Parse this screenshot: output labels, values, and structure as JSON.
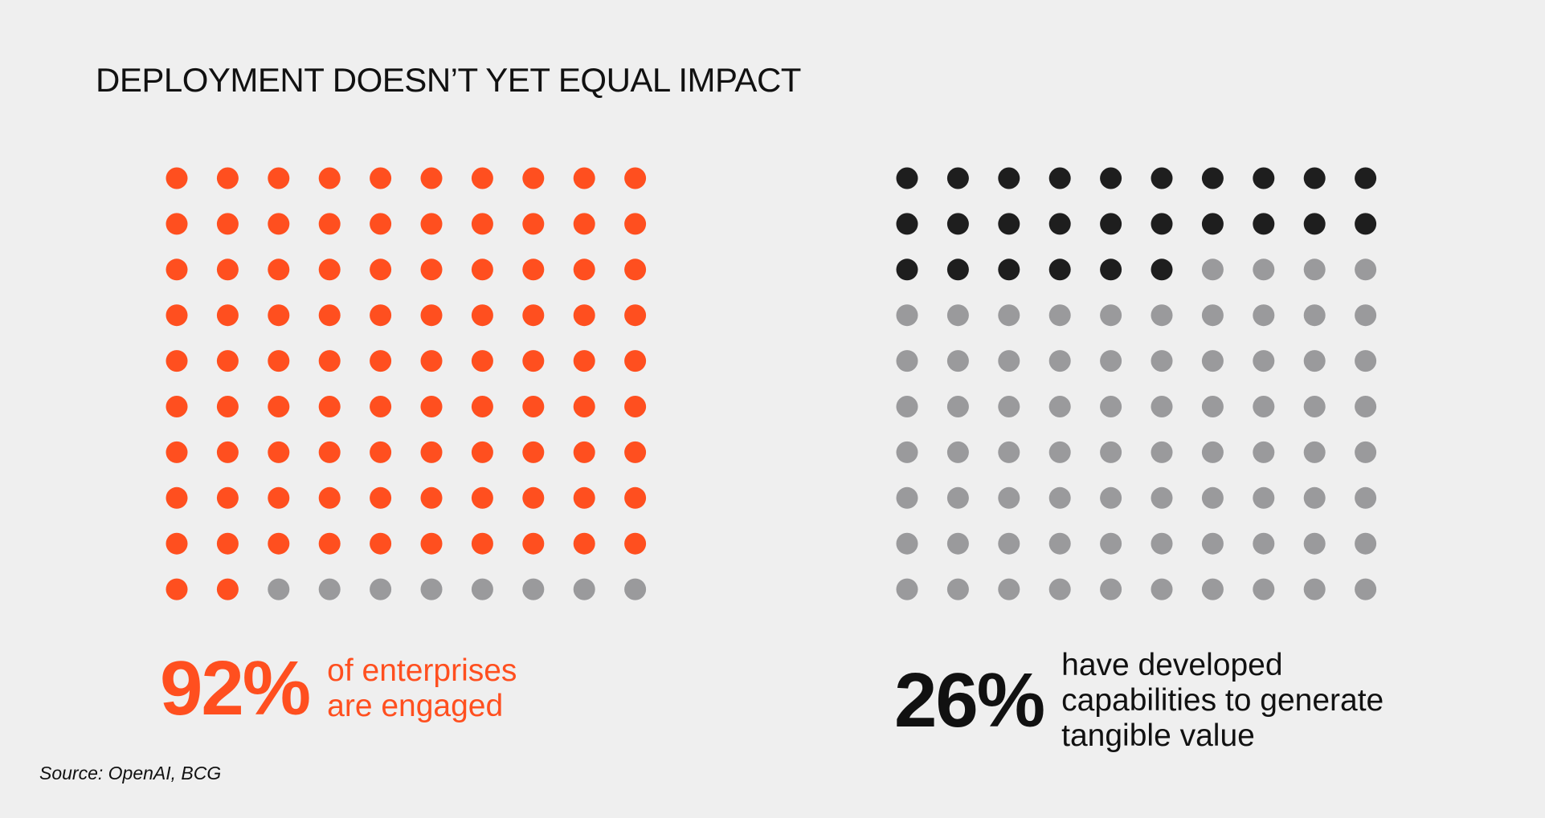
{
  "title": "DEPLOYMENT DOESN’T YET EQUAL IMPACT",
  "source": "Source: OpenAI, BCG",
  "colors": {
    "background": "#efefef",
    "orange": "#ff4f1f",
    "dark": "#1e1e1e",
    "gray": "#9a9a9c"
  },
  "chart_data": [
    {
      "type": "waffle",
      "rows": 10,
      "cols": 10,
      "total": 100,
      "value": 92,
      "fill_color": "#ff4f1f",
      "empty_color": "#9a9a9c",
      "percent_label": "92%",
      "caption_lines": [
        "of enterprises",
        "are engaged"
      ]
    },
    {
      "type": "waffle",
      "rows": 10,
      "cols": 10,
      "total": 100,
      "value": 26,
      "fill_color": "#1e1e1e",
      "empty_color": "#9a9a9c",
      "percent_label": "26%",
      "caption_lines": [
        "have developed",
        "capabilities to generate",
        "tangible value"
      ]
    }
  ]
}
